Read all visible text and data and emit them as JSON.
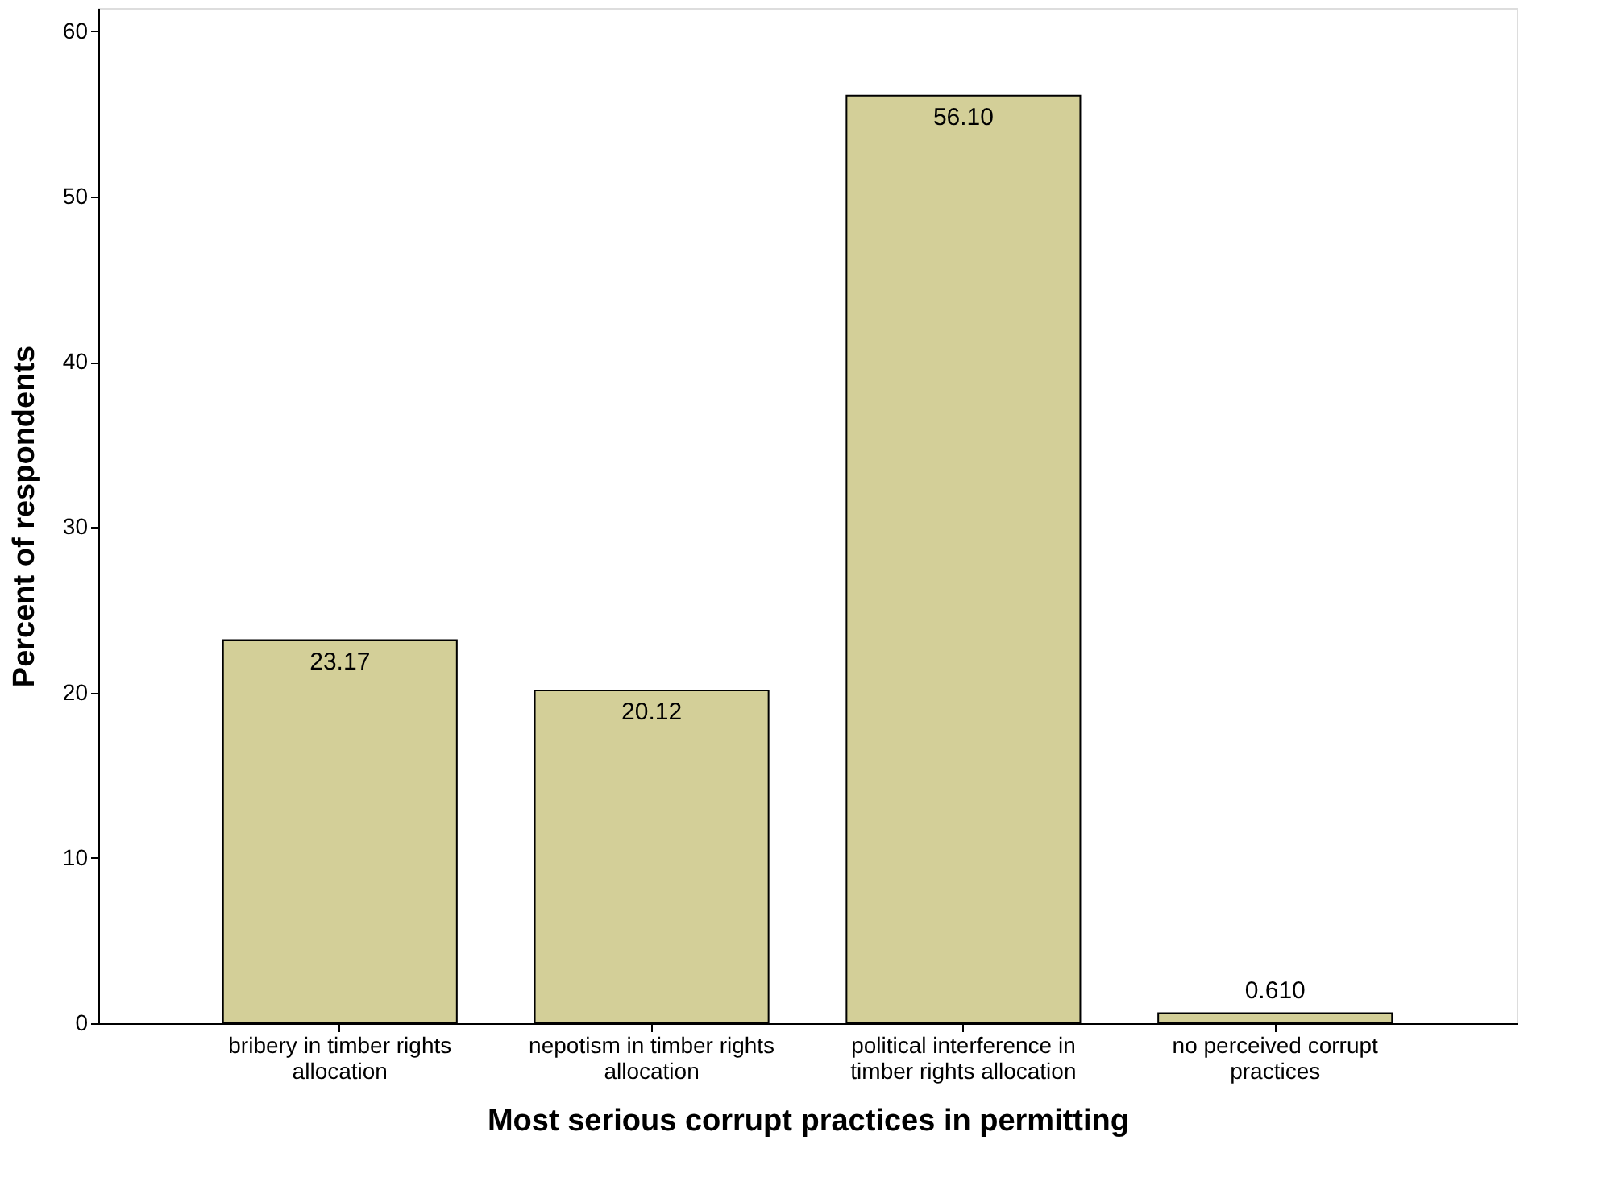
{
  "chart_data": {
    "type": "bar",
    "categories": [
      "bribery in timber rights allocation",
      "nepotism in timber rights allocation",
      "political interference in timber rights allocation",
      "no perceived corrupt practices"
    ],
    "values": [
      23.17,
      20.12,
      56.1,
      0.61
    ],
    "value_labels": [
      "23.17",
      "20.12",
      "56.10",
      "0.610"
    ],
    "color": "#d3cf98",
    "xlabel": "Most serious corrupt practices in permitting",
    "ylabel": "Percent of respondents",
    "ylim": [
      0,
      61.4
    ],
    "yticks": [
      0,
      10,
      20,
      30,
      40,
      50,
      60
    ],
    "grid": false
  }
}
